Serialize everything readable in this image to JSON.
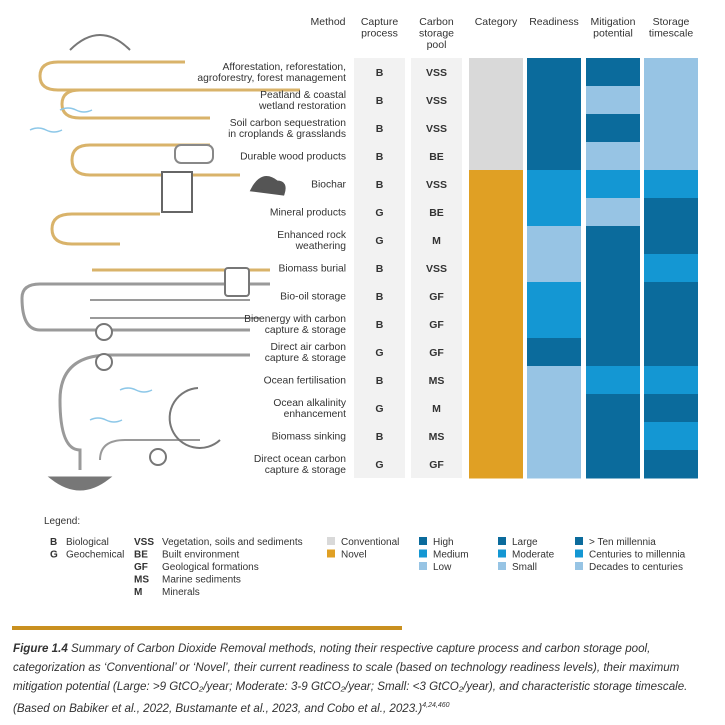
{
  "headers": [
    [
      "Method"
    ],
    [
      "Capture",
      "process"
    ],
    [
      "Carbon",
      "storage",
      "pool"
    ],
    [
      "Category"
    ],
    [
      "Readiness"
    ],
    [
      "Mitigation",
      "potential"
    ],
    [
      "Storage",
      "timescale"
    ]
  ],
  "rows": [
    {
      "method": [
        "Afforestation, reforestation,",
        "agroforestry, forest management"
      ],
      "capture": "B",
      "pool": "VSS",
      "category": "Conventional",
      "readiness": "High",
      "mitigation": "Large",
      "storage": "Decades to centuries"
    },
    {
      "method": [
        "Peatland & coastal",
        "wetland restoration"
      ],
      "capture": "B",
      "pool": "VSS",
      "category": "Conventional",
      "readiness": "High",
      "mitigation": "Small",
      "storage": "Decades to centuries"
    },
    {
      "method": [
        "Soil carbon sequestration",
        "in croplands & grasslands"
      ],
      "capture": "B",
      "pool": "VSS",
      "category": "Conventional",
      "readiness": "High",
      "mitigation": "Large",
      "storage": "Decades to centuries"
    },
    {
      "method": [
        "Durable wood products"
      ],
      "capture": "B",
      "pool": "BE",
      "category": "Conventional",
      "readiness": "High",
      "mitigation": "Small",
      "storage": "Decades to centuries"
    },
    {
      "method": [
        "Biochar"
      ],
      "capture": "B",
      "pool": "VSS",
      "category": "Novel",
      "readiness": "Medium",
      "mitigation": "Moderate",
      "storage": "Centuries to millennia"
    },
    {
      "method": [
        "Mineral products"
      ],
      "capture": "G",
      "pool": "BE",
      "category": "Novel",
      "readiness": "Medium",
      "mitigation": "Small",
      "storage": "> Ten millennia"
    },
    {
      "method": [
        "Enhanced rock",
        "weathering"
      ],
      "capture": "G",
      "pool": "M",
      "category": "Novel",
      "readiness": "Low",
      "mitigation": "Large",
      "storage": "> Ten millennia"
    },
    {
      "method": [
        "Biomass burial"
      ],
      "capture": "B",
      "pool": "VSS",
      "category": "Novel",
      "readiness": "Low",
      "mitigation": "Large",
      "storage": "Centuries to millennia"
    },
    {
      "method": [
        "Bio-oil storage"
      ],
      "capture": "B",
      "pool": "GF",
      "category": "Novel",
      "readiness": "Medium",
      "mitigation": "Large",
      "storage": "> Ten millennia"
    },
    {
      "method": [
        "Bioenergy with carbon",
        "capture & storage"
      ],
      "capture": "B",
      "pool": "GF",
      "category": "Novel",
      "readiness": "Medium",
      "mitigation": "Large",
      "storage": "> Ten millennia"
    },
    {
      "method": [
        "Direct air carbon",
        "capture & storage"
      ],
      "capture": "G",
      "pool": "GF",
      "category": "Novel",
      "readiness": "High",
      "mitigation": "Large",
      "storage": "> Ten millennia"
    },
    {
      "method": [
        "Ocean fertilisation"
      ],
      "capture": "B",
      "pool": "MS",
      "category": "Novel",
      "readiness": "Low",
      "mitigation": "Moderate",
      "storage": "Centuries to millennia"
    },
    {
      "method": [
        "Ocean alkalinity",
        "enhancement"
      ],
      "capture": "G",
      "pool": "M",
      "category": "Novel",
      "readiness": "Low",
      "mitigation": "Large",
      "storage": "> Ten millennia"
    },
    {
      "method": [
        "Biomass sinking"
      ],
      "capture": "B",
      "pool": "MS",
      "category": "Novel",
      "readiness": "Low",
      "mitigation": "Large",
      "storage": "Centuries to millennia"
    },
    {
      "method": [
        "Direct ocean carbon",
        "capture & storage"
      ],
      "capture": "G",
      "pool": "GF",
      "category": "Novel",
      "readiness": "Low",
      "mitigation": "Large",
      "storage": "> Ten millennia"
    }
  ],
  "legend": {
    "title": "Legend:",
    "capture": [
      {
        "code": "B",
        "label": "Biological"
      },
      {
        "code": "G",
        "label": "Geochemical"
      }
    ],
    "pool": [
      {
        "code": "VSS",
        "label": "Vegetation, soils and sediments"
      },
      {
        "code": "BE",
        "label": "Built environment"
      },
      {
        "code": "GF",
        "label": "Geological formations"
      },
      {
        "code": "MS",
        "label": "Marine sediments"
      },
      {
        "code": "M",
        "label": "Minerals"
      }
    ],
    "category": [
      {
        "label": "Conventional",
        "color": "#d9d9d9"
      },
      {
        "label": "Novel",
        "color": "#e0a024"
      }
    ],
    "readiness": [
      {
        "label": "High",
        "color": "#0b6b9c"
      },
      {
        "label": "Medium",
        "color": "#1497d3"
      },
      {
        "label": "Low",
        "color": "#97c4e4"
      }
    ],
    "mitigation": [
      {
        "label": "Large",
        "color": "#0b6b9c"
      },
      {
        "label": "Moderate",
        "color": "#1497d3"
      },
      {
        "label": "Small",
        "color": "#97c4e4"
      }
    ],
    "storage": [
      {
        "label": "> Ten millennia",
        "color": "#0b6b9c"
      },
      {
        "label": "Centuries to millennia",
        "color": "#1497d3"
      },
      {
        "label": "Decades to centuries",
        "color": "#97c4e4"
      }
    ]
  },
  "caption": {
    "label": "Figure 1.4",
    "text": " Summary of Carbon Dioxide Removal methods, noting their respective capture process and carbon storage pool, categorization as ‘Conventional’ or ‘Novel’, their current readiness to scale (based on technology readiness levels), their maximum mitigation potential (Large: >9 GtCO₂/year; Moderate: 3-9 GtCO₂/year; Small: <3 GtCO₂/year), and characteristic storage timescale. (Based on Babiker et al., 2022, Bustamante et al., 2023, and Cobo et al., 2023.)",
    "refs": "4,24,460"
  }
}
